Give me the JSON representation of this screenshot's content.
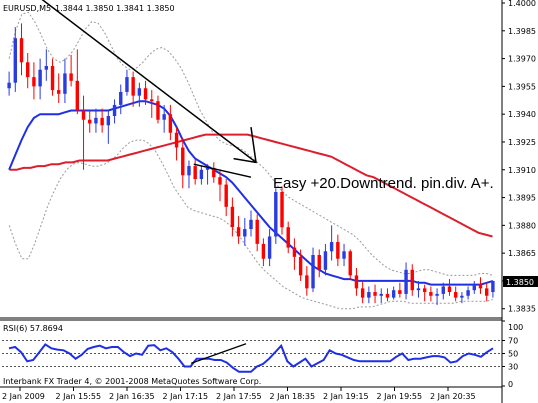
{
  "chart_header": {
    "symbol_tf": "EURUSD,M5",
    "ohlc": "1.3844 1.3850 1.3841 1.3850"
  },
  "annotation": {
    "text": "Easy +20.Downtrend. pin.div. A+."
  },
  "indicator_header": {
    "label": "RSI(6) 57.8694"
  },
  "footer": {
    "copyright": "Interbank FX Trader 4, © 2001-2008 MetaQuotes Software Corp."
  },
  "current_price_label": "1.3850",
  "colors": {
    "bull": "#2a3ce0",
    "bear": "#ff0000",
    "ma_fast": "#1f2fe6",
    "ma_slow": "#dc1e2d",
    "bands": "#9a9a9a",
    "rsi": "#1f2fe6"
  },
  "chart_data": [
    {
      "type": "candlestick",
      "title": "EURUSD,M5 1.3844 1.3850 1.3841 1.3850",
      "ylim": [
        1.383,
        1.4
      ],
      "y_ticks": [
        "1.4000",
        "1.3985",
        "1.3970",
        "1.3955",
        "1.3940",
        "1.3925",
        "1.3910",
        "1.3895",
        "1.3880",
        "1.3865",
        "1.3850",
        "1.3835"
      ],
      "x_ticks": [
        "2 Jan 2009",
        "2 Jan 15:55",
        "2 Jan 16:35",
        "2 Jan 17:15",
        "2 Jan 17:55",
        "2 Jan 18:35",
        "2 Jan 19:15",
        "2 Jan 19:55",
        "2 Jan 20:35"
      ],
      "candles": [
        [
          1.3954,
          1.3963,
          1.395,
          1.3957
        ],
        [
          1.3957,
          1.3987,
          1.3952,
          1.3981
        ],
        [
          1.3981,
          1.3989,
          1.3961,
          1.3968
        ],
        [
          1.3968,
          1.3973,
          1.3954,
          1.396
        ],
        [
          1.396,
          1.3968,
          1.3948,
          1.3955
        ],
        [
          1.3955,
          1.397,
          1.3948,
          1.3964
        ],
        [
          1.3964,
          1.3975,
          1.3958,
          1.3966
        ],
        [
          1.3966,
          1.397,
          1.395,
          1.3953
        ],
        [
          1.3953,
          1.3962,
          1.3946,
          1.3951
        ],
        [
          1.3951,
          1.397,
          1.3946,
          1.3962
        ],
        [
          1.3962,
          1.3972,
          1.3955,
          1.3958
        ],
        [
          1.3958,
          1.3975,
          1.394,
          1.3942
        ],
        [
          1.3942,
          1.395,
          1.391,
          1.3937
        ],
        [
          1.3937,
          1.3942,
          1.393,
          1.3935
        ],
        [
          1.3935,
          1.3943,
          1.393,
          1.3938
        ],
        [
          1.3938,
          1.3943,
          1.393,
          1.3934
        ],
        [
          1.3934,
          1.3942,
          1.3924,
          1.3939
        ],
        [
          1.3939,
          1.3948,
          1.3935,
          1.3945
        ],
        [
          1.3945,
          1.3956,
          1.394,
          1.3952
        ],
        [
          1.3952,
          1.3964,
          1.395,
          1.396
        ],
        [
          1.396,
          1.3963,
          1.3944,
          1.395
        ],
        [
          1.395,
          1.3957,
          1.3944,
          1.3954
        ],
        [
          1.3954,
          1.3958,
          1.3945,
          1.3948
        ],
        [
          1.3948,
          1.3953,
          1.3938,
          1.3947
        ],
        [
          1.3947,
          1.395,
          1.3935,
          1.3937
        ],
        [
          1.3937,
          1.3945,
          1.393,
          1.394
        ],
        [
          1.394,
          1.3945,
          1.3926,
          1.393
        ],
        [
          1.393,
          1.3933,
          1.3915,
          1.3922
        ],
        [
          1.3922,
          1.3927,
          1.39,
          1.3907
        ],
        [
          1.3907,
          1.3915,
          1.39,
          1.3912
        ],
        [
          1.3912,
          1.3916,
          1.3902,
          1.3905
        ],
        [
          1.3905,
          1.3912,
          1.3902,
          1.391
        ],
        [
          1.391,
          1.3913,
          1.3902,
          1.3911
        ],
        [
          1.3911,
          1.3914,
          1.3903,
          1.3906
        ],
        [
          1.3906,
          1.391,
          1.3893,
          1.3902
        ],
        [
          1.3902,
          1.3905,
          1.3885,
          1.389
        ],
        [
          1.389,
          1.3895,
          1.3874,
          1.3879
        ],
        [
          1.3879,
          1.3885,
          1.387,
          1.3874
        ],
        [
          1.3874,
          1.3884,
          1.3869,
          1.3878
        ],
        [
          1.3878,
          1.3888,
          1.3874,
          1.3883
        ],
        [
          1.3883,
          1.3886,
          1.3866,
          1.387
        ],
        [
          1.387,
          1.3873,
          1.3858,
          1.3862
        ],
        [
          1.3862,
          1.3878,
          1.3858,
          1.3874
        ],
        [
          1.3874,
          1.39,
          1.387,
          1.3898
        ],
        [
          1.3898,
          1.3901,
          1.3875,
          1.3879
        ],
        [
          1.3879,
          1.3882,
          1.3865,
          1.3868
        ],
        [
          1.3868,
          1.3873,
          1.3856,
          1.3863
        ],
        [
          1.3863,
          1.3867,
          1.385,
          1.3853
        ],
        [
          1.3853,
          1.3858,
          1.3842,
          1.3846
        ],
        [
          1.3846,
          1.3868,
          1.3844,
          1.3864
        ],
        [
          1.3864,
          1.3867,
          1.3852,
          1.3856
        ],
        [
          1.3856,
          1.387,
          1.3853,
          1.3866
        ],
        [
          1.3866,
          1.388,
          1.3861,
          1.3871
        ],
        [
          1.3871,
          1.3875,
          1.3858,
          1.3862
        ],
        [
          1.3862,
          1.387,
          1.3858,
          1.3866
        ],
        [
          1.3866,
          1.3867,
          1.3851,
          1.3853
        ],
        [
          1.3853,
          1.3857,
          1.3842,
          1.3846
        ],
        [
          1.3846,
          1.385,
          1.3838,
          1.3841
        ],
        [
          1.3841,
          1.3847,
          1.3838,
          1.3844
        ],
        [
          1.3844,
          1.3848,
          1.3838,
          1.3842
        ],
        [
          1.3842,
          1.3846,
          1.3838,
          1.3843
        ],
        [
          1.3843,
          1.3846,
          1.3839,
          1.3841
        ],
        [
          1.3841,
          1.3847,
          1.384,
          1.3845
        ],
        [
          1.3845,
          1.3849,
          1.3841,
          1.3843
        ],
        [
          1.3843,
          1.386,
          1.384,
          1.3856
        ],
        [
          1.3856,
          1.3859,
          1.3842,
          1.3845
        ],
        [
          1.3845,
          1.385,
          1.3841,
          1.3846
        ],
        [
          1.3846,
          1.3848,
          1.3839,
          1.3844
        ],
        [
          1.3844,
          1.3847,
          1.3839,
          1.3842
        ],
        [
          1.3842,
          1.3846,
          1.3837,
          1.3843
        ],
        [
          1.3843,
          1.3849,
          1.384,
          1.3847
        ],
        [
          1.3847,
          1.3851,
          1.3842,
          1.3844
        ],
        [
          1.3844,
          1.3847,
          1.3839,
          1.3841
        ],
        [
          1.3841,
          1.3844,
          1.3838,
          1.3842
        ],
        [
          1.3842,
          1.3847,
          1.384,
          1.3845
        ],
        [
          1.3845,
          1.385,
          1.3843,
          1.3848
        ],
        [
          1.3848,
          1.3852,
          1.3843,
          1.3846
        ],
        [
          1.3846,
          1.3849,
          1.3839,
          1.3842
        ],
        [
          1.3844,
          1.385,
          1.3841,
          1.385
        ]
      ],
      "ma_fast": [
        1.391,
        1.3918,
        1.3926,
        1.3933,
        1.3938,
        1.394,
        1.394,
        1.394,
        1.394,
        1.3941,
        1.3942,
        1.3942,
        1.3942,
        1.3942,
        1.3942,
        1.3942,
        1.3942,
        1.3943,
        1.3944,
        1.3945,
        1.3946,
        1.3947,
        1.3947,
        1.3946,
        1.3945,
        1.3943,
        1.3939,
        1.3933,
        1.3926,
        1.392,
        1.3916,
        1.3914,
        1.3912,
        1.391,
        1.3908,
        1.3906,
        1.3903,
        1.3899,
        1.3895,
        1.3891,
        1.3887,
        1.3883,
        1.3879,
        1.3876,
        1.3873,
        1.387,
        1.3867,
        1.3864,
        1.3861,
        1.3858,
        1.3856,
        1.3854,
        1.3853,
        1.3852,
        1.3851,
        1.3851,
        1.385,
        1.385,
        1.385,
        1.385,
        1.385,
        1.385,
        1.385,
        1.385,
        1.385,
        1.385,
        1.3849,
        1.3849,
        1.3848,
        1.3848,
        1.3848,
        1.3848,
        1.3848,
        1.3848,
        1.3848,
        1.3848,
        1.3848,
        1.3849,
        1.385
      ],
      "ma_slow": [
        1.391,
        1.391,
        1.3911,
        1.3911,
        1.3912,
        1.3912,
        1.3913,
        1.3913,
        1.3914,
        1.3914,
        1.3915,
        1.3915,
        1.3915,
        1.3915,
        1.3915,
        1.3916,
        1.3917,
        1.3918,
        1.3919,
        1.392,
        1.3921,
        1.3922,
        1.3923,
        1.3924,
        1.3925,
        1.3926,
        1.3927,
        1.3928,
        1.3929,
        1.3929,
        1.3929,
        1.3929,
        1.3929,
        1.3929,
        1.3929,
        1.3928,
        1.3927,
        1.3926,
        1.3925,
        1.3924,
        1.3923,
        1.3922,
        1.3921,
        1.392,
        1.3919,
        1.3918,
        1.3917,
        1.3915,
        1.3913,
        1.3911,
        1.3909,
        1.3907,
        1.3906,
        1.3904,
        1.3902,
        1.39,
        1.3898,
        1.3896,
        1.3894,
        1.3892,
        1.389,
        1.3888,
        1.3886,
        1.3884,
        1.3882,
        1.388,
        1.3878,
        1.3876,
        1.3875,
        1.3874
      ],
      "band_upper": [
        1.397,
        1.3985,
        1.3994,
        1.3995,
        1.399,
        1.3983,
        1.3975,
        1.397,
        1.3968,
        1.397,
        1.3974,
        1.398,
        1.3986,
        1.399,
        1.3989,
        1.3984,
        1.3977,
        1.397,
        1.3966,
        1.3964,
        1.3965,
        1.3968,
        1.3972,
        1.3975,
        1.3976,
        1.3974,
        1.397,
        1.3965,
        1.3958,
        1.395,
        1.3942,
        1.3936,
        1.393,
        1.3926,
        1.3924,
        1.3923,
        1.3922,
        1.392,
        1.3917,
        1.3914,
        1.3911,
        1.3907,
        1.3902,
        1.3898,
        1.3895,
        1.3893,
        1.3891,
        1.3889,
        1.3887,
        1.3885,
        1.3883,
        1.3881,
        1.3879,
        1.3877,
        1.3875,
        1.3872,
        1.3868,
        1.3864,
        1.3861,
        1.3858,
        1.3856,
        1.3855,
        1.3854,
        1.3854,
        1.3855,
        1.3856,
        1.3856,
        1.3855,
        1.3854,
        1.3853,
        1.3853,
        1.3853,
        1.3853,
        1.3853,
        1.3854,
        1.3854,
        1.3853
      ],
      "band_lower": [
        1.388,
        1.387,
        1.3862,
        1.3862,
        1.387,
        1.388,
        1.389,
        1.3898,
        1.3905,
        1.391,
        1.3913,
        1.3914,
        1.3913,
        1.3912,
        1.3912,
        1.3913,
        1.3915,
        1.3918,
        1.3922,
        1.3925,
        1.3926,
        1.3926,
        1.3924,
        1.392,
        1.3914,
        1.3907,
        1.39,
        1.3895,
        1.389,
        1.3888,
        1.3887,
        1.3886,
        1.3885,
        1.3884,
        1.3882,
        1.3879,
        1.3875,
        1.387,
        1.3865,
        1.386,
        1.3856,
        1.3853,
        1.385,
        1.3847,
        1.3845,
        1.3843,
        1.3841,
        1.384,
        1.3839,
        1.3838,
        1.3837,
        1.3836,
        1.3835,
        1.3835,
        1.3835,
        1.3836,
        1.3836,
        1.3836,
        1.3837,
        1.3838,
        1.3839,
        1.3839,
        1.3839,
        1.3838,
        1.3838,
        1.3838,
        1.3838,
        1.3838,
        1.3838,
        1.3838,
        1.3838,
        1.3839,
        1.3839,
        1.3839,
        1.3839,
        1.3839,
        1.384
      ],
      "trendline": [
        [
          0.08,
          1.4002
        ],
        [
          0.51,
          1.3914
        ]
      ],
      "arrow_head": [
        [
          0.51,
          1.3914
        ],
        [
          0.465,
          1.3916
        ],
        [
          0.51,
          1.3914
        ],
        [
          0.5,
          1.3933
        ]
      ],
      "div_line": [
        [
          0.385,
          1.3913
        ],
        [
          0.5,
          1.3906
        ]
      ]
    },
    {
      "type": "line",
      "title": "RSI(6) 57.8694",
      "ylim": [
        0,
        100
      ],
      "y_ticks": [
        "100",
        "70",
        "50",
        "30",
        "0"
      ],
      "levels": [
        70,
        50,
        30
      ],
      "values": [
        58,
        60,
        52,
        38,
        40,
        52,
        64,
        58,
        56,
        55,
        50,
        42,
        48,
        57,
        60,
        62,
        58,
        60,
        60,
        52,
        46,
        50,
        48,
        62,
        63,
        55,
        58,
        52,
        42,
        30,
        30,
        42,
        42,
        42,
        40,
        40,
        36,
        28,
        22,
        22,
        22,
        30,
        34,
        42,
        52,
        62,
        38,
        30,
        36,
        42,
        30,
        35,
        40,
        55,
        50,
        48,
        44,
        40,
        38,
        38,
        38,
        38,
        38,
        38,
        45,
        50,
        40,
        42,
        42,
        44,
        46,
        46,
        44,
        36,
        38,
        46,
        50,
        48,
        45,
        52,
        58
      ],
      "div_line": [
        [
          0.38,
          35
        ],
        [
          0.49,
          65
        ]
      ]
    }
  ]
}
